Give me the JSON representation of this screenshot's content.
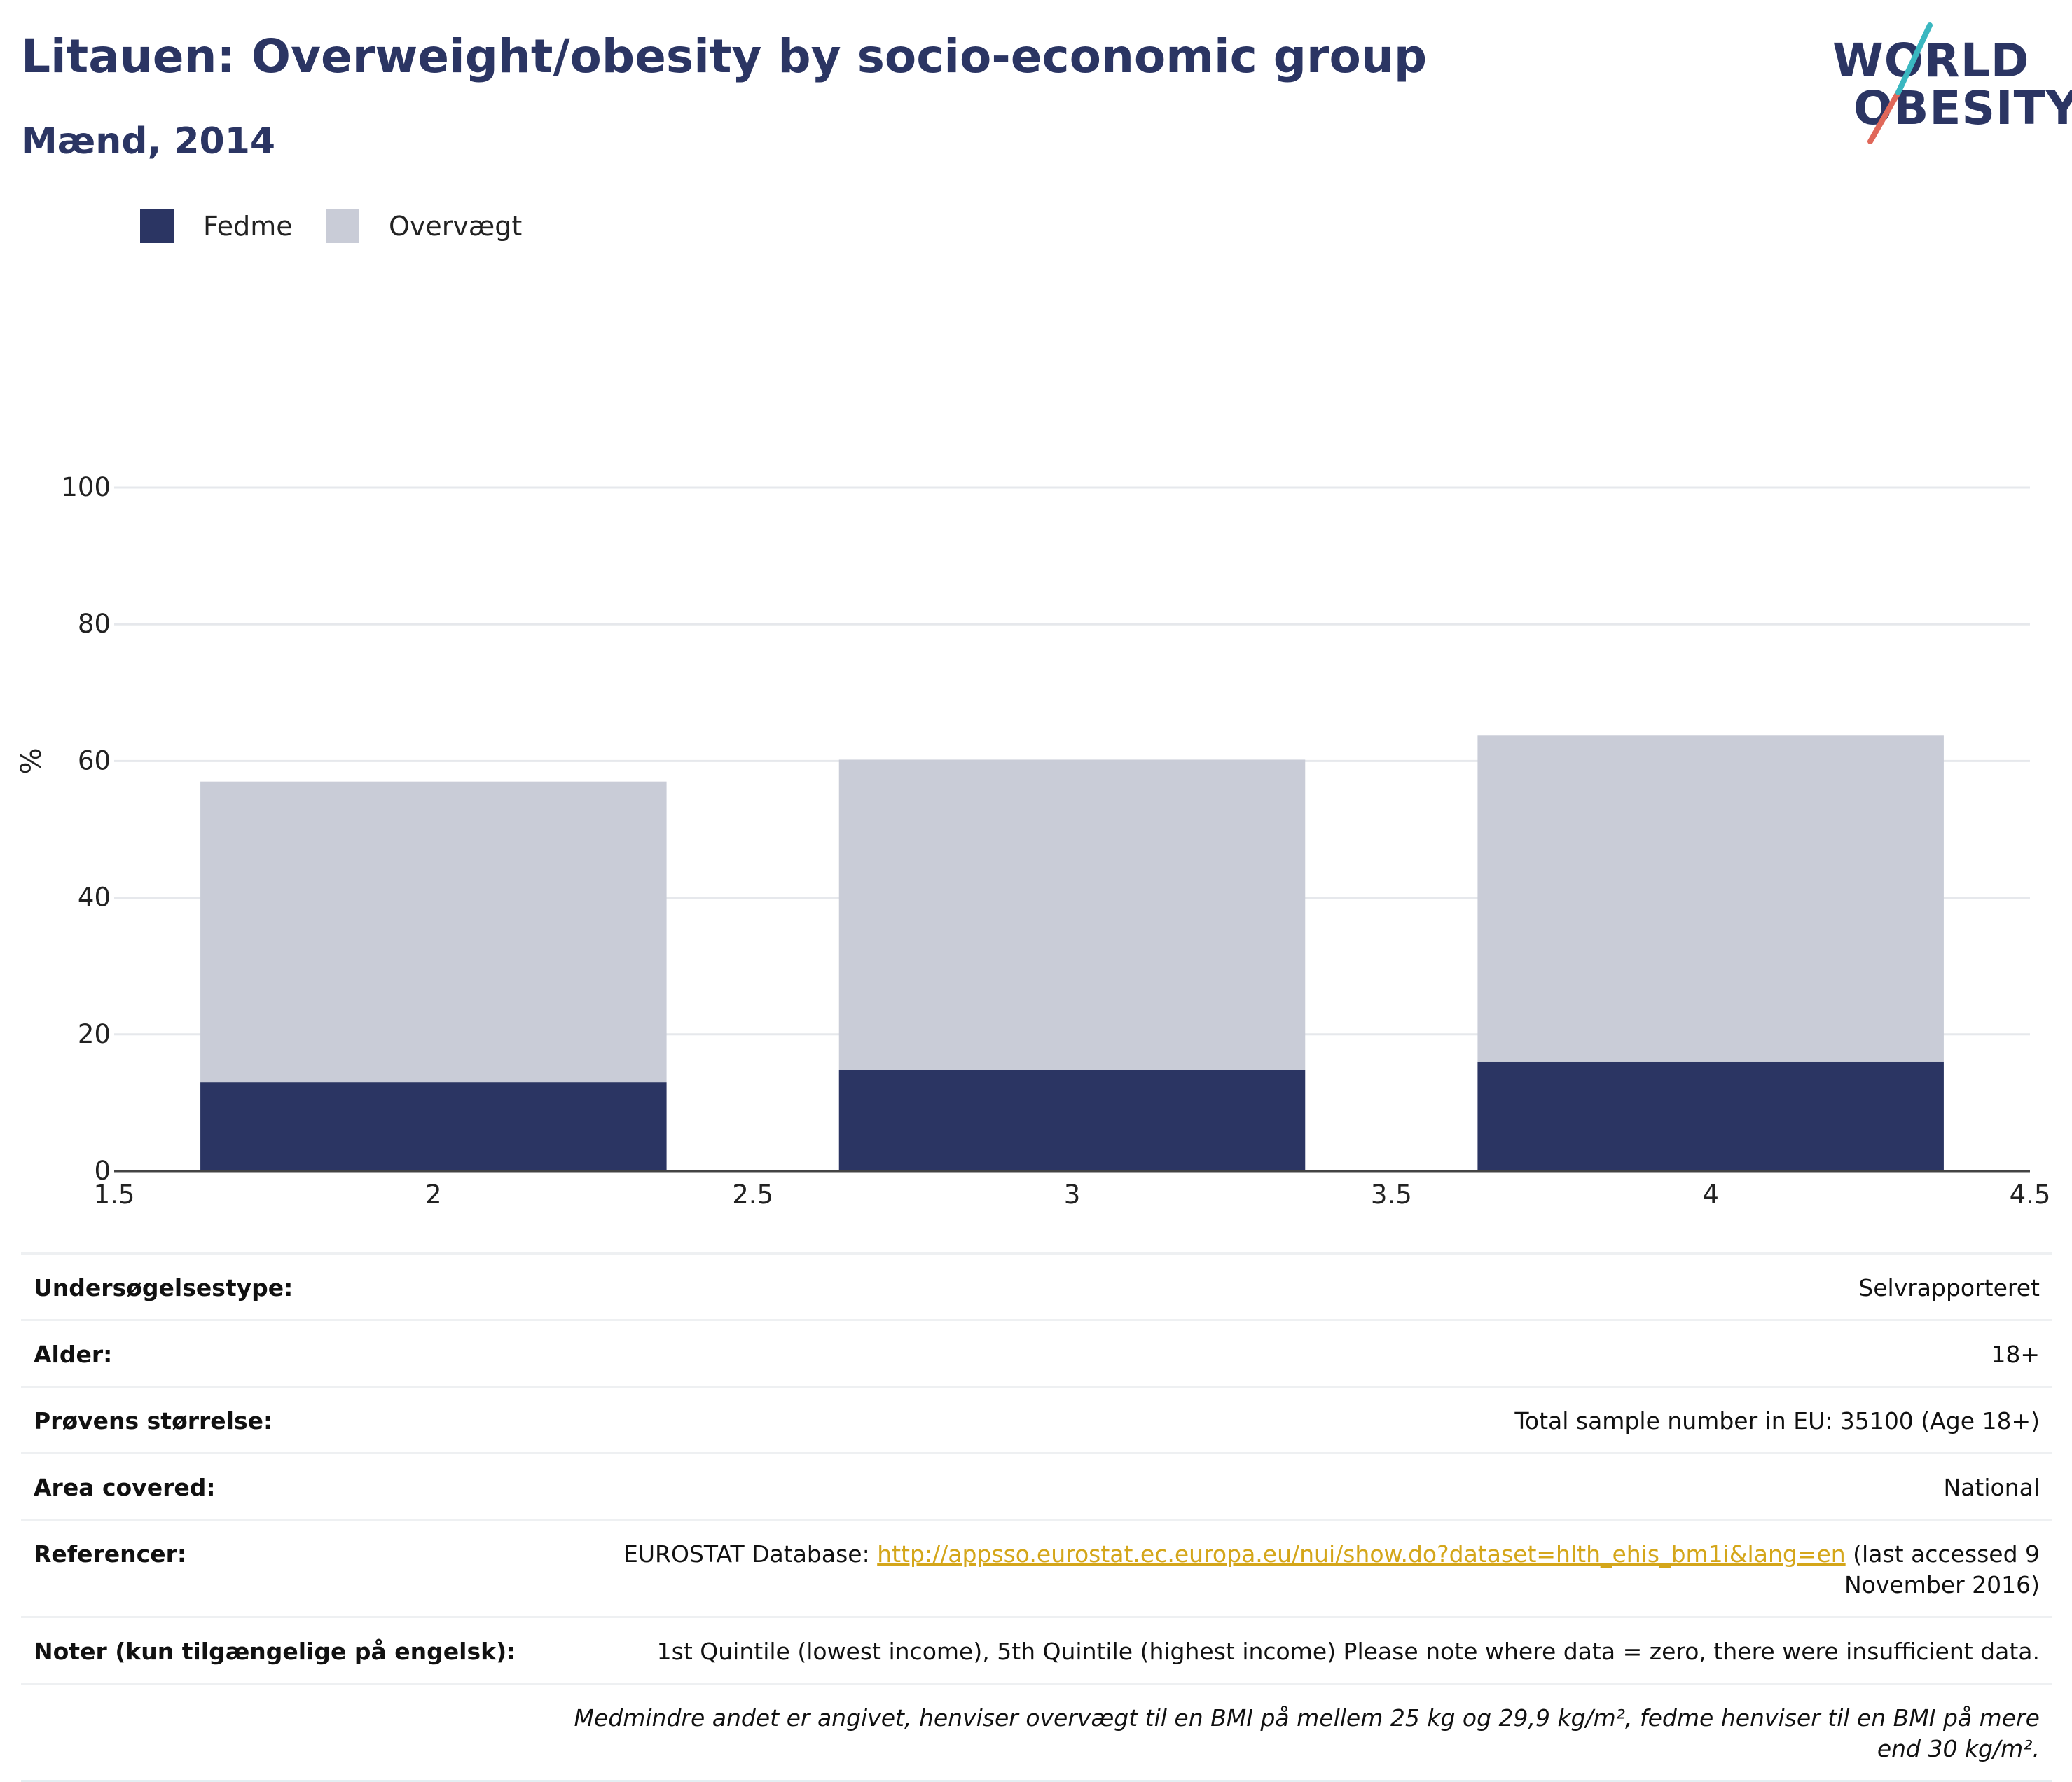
{
  "header": {
    "title": "Litauen: Overweight/obesity by socio-economic group",
    "subtitle": "Mænd, 2014"
  },
  "logo": {
    "line1": "WORLD",
    "line2": "OBESITY"
  },
  "legend": [
    {
      "label": "Fedme",
      "color": "#2b3563"
    },
    {
      "label": "Overvægt",
      "color": "#c9ccd7"
    }
  ],
  "chart_data": {
    "type": "bar",
    "stacked": true,
    "x": [
      2,
      3,
      4
    ],
    "series": [
      {
        "name": "Fedme",
        "color": "#2b3563",
        "values": [
          13.0,
          14.8,
          16.0
        ]
      },
      {
        "name": "Overvægt",
        "color": "#c9ccd7",
        "values": [
          44.0,
          45.4,
          47.7
        ]
      }
    ],
    "xlim": [
      1.5,
      4.5
    ],
    "ylim": [
      0,
      100
    ],
    "x_ticks": [
      "1.5",
      "2",
      "2.5",
      "3",
      "3.5",
      "4",
      "4.5"
    ],
    "y_ticks": [
      "0",
      "20",
      "40",
      "60",
      "80",
      "100"
    ],
    "ylabel": "%",
    "xlabel": "",
    "grid": true,
    "legend_position": "top-left"
  },
  "info": {
    "rows": [
      {
        "label": "Undersøgelsestype:",
        "value": "Selvrapporteret"
      },
      {
        "label": "Alder:",
        "value": "18+"
      },
      {
        "label": "Prøvens størrelse:",
        "value": "Total sample number in EU: 35100 (Age 18+)"
      },
      {
        "label": "Area covered:",
        "value": "National"
      }
    ],
    "reference": {
      "label": "Referencer:",
      "prefix": "EUROSTAT Database: ",
      "link": "http://appsso.eurostat.ec.europa.eu/nui/show.do?dataset=hlth_ehis_bm1i&lang=en",
      "suffix": " (last accessed 9 November 2016)"
    },
    "notes": {
      "label": "Noter (kun tilgængelige på engelsk):",
      "value": "1st Quintile (lowest income), 5th Quintile (highest income) Please note where data = zero, there were insufficient data."
    },
    "footnote": "Medmindre andet er angivet, henviser overvægt til en BMI på mellem 25 kg og 29,9 kg/m², fedme henviser til en BMI på mere end 30 kg/m²."
  }
}
